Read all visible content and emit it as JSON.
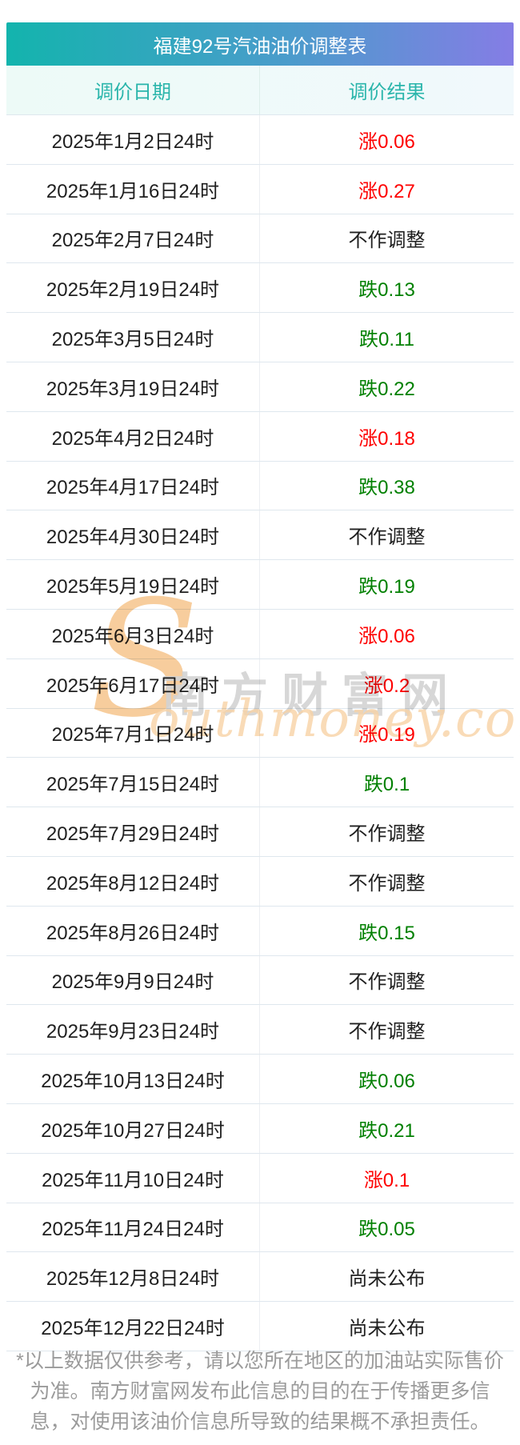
{
  "table": {
    "title": "福建92号汽油油价调整表",
    "columns": [
      "调价日期",
      "调价结果"
    ],
    "rows": [
      {
        "date": "2025年1月2日24时",
        "result": "涨0.06",
        "type": "up"
      },
      {
        "date": "2025年1月16日24时",
        "result": "涨0.27",
        "type": "up"
      },
      {
        "date": "2025年2月7日24时",
        "result": "不作调整",
        "type": "none"
      },
      {
        "date": "2025年2月19日24时",
        "result": "跌0.13",
        "type": "down"
      },
      {
        "date": "2025年3月5日24时",
        "result": "跌0.11",
        "type": "down"
      },
      {
        "date": "2025年3月19日24时",
        "result": "跌0.22",
        "type": "down"
      },
      {
        "date": "2025年4月2日24时",
        "result": "涨0.18",
        "type": "up"
      },
      {
        "date": "2025年4月17日24时",
        "result": "跌0.38",
        "type": "down"
      },
      {
        "date": "2025年4月30日24时",
        "result": "不作调整",
        "type": "none"
      },
      {
        "date": "2025年5月19日24时",
        "result": "跌0.19",
        "type": "down"
      },
      {
        "date": "2025年6月3日24时",
        "result": "涨0.06",
        "type": "up"
      },
      {
        "date": "2025年6月17日24时",
        "result": "涨0.2",
        "type": "up"
      },
      {
        "date": "2025年7月1日24时",
        "result": "涨0.19",
        "type": "up"
      },
      {
        "date": "2025年7月15日24时",
        "result": "跌0.1",
        "type": "down"
      },
      {
        "date": "2025年7月29日24时",
        "result": "不作调整",
        "type": "none"
      },
      {
        "date": "2025年8月12日24时",
        "result": "不作调整",
        "type": "none"
      },
      {
        "date": "2025年8月26日24时",
        "result": "跌0.15",
        "type": "down"
      },
      {
        "date": "2025年9月9日24时",
        "result": "不作调整",
        "type": "none"
      },
      {
        "date": "2025年9月23日24时",
        "result": "不作调整",
        "type": "none"
      },
      {
        "date": "2025年10月13日24时",
        "result": "跌0.06",
        "type": "down"
      },
      {
        "date": "2025年10月27日24时",
        "result": "跌0.21",
        "type": "down"
      },
      {
        "date": "2025年11月10日24时",
        "result": "涨0.1",
        "type": "up"
      },
      {
        "date": "2025年11月24日24时",
        "result": "跌0.05",
        "type": "down"
      },
      {
        "date": "2025年12月8日24时",
        "result": "尚未公布",
        "type": "none"
      },
      {
        "date": "2025年12月22日24时",
        "result": "尚未公布",
        "type": "none"
      }
    ]
  },
  "colors": {
    "up": "#fe0000",
    "down": "#018001",
    "none": "#1f1f1f",
    "title_gradient_start": "#13b4ad",
    "title_gradient_end": "#857de5",
    "header_text": "#2ab5ab"
  },
  "watermark": {
    "s_glyph": "S",
    "site_name_cn": "南方财富网",
    "site_name_en": "outhmoney.com"
  },
  "footer": {
    "disclaimer": "*以上数据仅供参考，请以您所在地区的加油站实际售价为准。南方财富网发布此信息的目的在于传播更多信息，对使用该油价信息所导致的结果概不承担责任。"
  }
}
